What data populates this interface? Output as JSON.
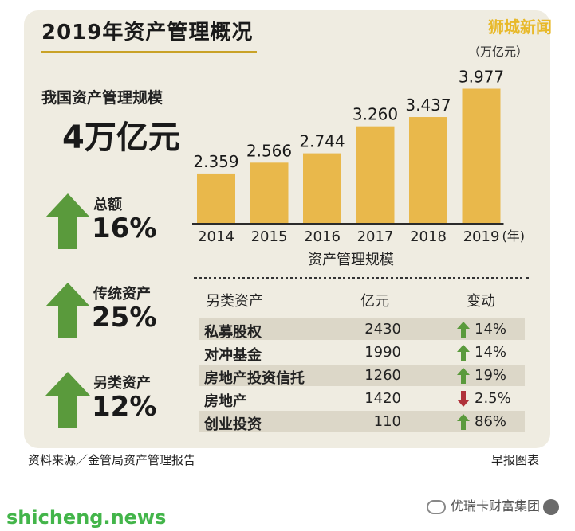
{
  "title": "2019年资产管理概况",
  "brand_top": "狮城新闻",
  "unit": "（万亿元）",
  "summary": {
    "label": "我国资产管理规模",
    "value": "4万亿元"
  },
  "stats": [
    {
      "label": "总额",
      "value": "16%"
    },
    {
      "label": "传统资产",
      "value": "25%"
    },
    {
      "label": "另类资产",
      "value": "12%"
    }
  ],
  "chart_data": {
    "type": "bar",
    "categories": [
      "2014",
      "2015",
      "2016",
      "2017",
      "2018",
      "2019"
    ],
    "values": [
      2.359,
      2.566,
      2.744,
      3.26,
      3.437,
      3.977
    ],
    "data_labels": [
      "2.359",
      "2.566",
      "2.744",
      "3.260",
      "3.437",
      "3.977"
    ],
    "x_suffix": "(年)",
    "xlabel": "资产管理规模",
    "ylabel": "",
    "ylim": [
      1.4,
      4.0
    ],
    "grid": false,
    "bar_color": "#e9b84b"
  },
  "table": {
    "headers": [
      "另类资产",
      "亿元",
      "变动"
    ],
    "rows": [
      {
        "name": "私募股权",
        "amount": "2430",
        "direction": "up",
        "change": "14%"
      },
      {
        "name": "对冲基金",
        "amount": "1990",
        "direction": "up",
        "change": "14%"
      },
      {
        "name": "房地产投资信托",
        "amount": "1260",
        "direction": "up",
        "change": "19%"
      },
      {
        "name": "房地产",
        "amount": "1420",
        "direction": "down",
        "change": "2.5%"
      },
      {
        "name": "创业投资",
        "amount": "110",
        "direction": "up",
        "change": "86%"
      }
    ]
  },
  "source": "资料来源／金管局资产管理报告",
  "credit": "早报图表",
  "watermark_left": "shicheng.news",
  "watermark_right": "优瑞卡财富集团",
  "colors": {
    "panel": "#efece1",
    "bar": "#e9b84b",
    "up": "#5a9a3c",
    "down": "#b0323a",
    "brand": "#e8b92a",
    "watermark": "#43b54a"
  }
}
